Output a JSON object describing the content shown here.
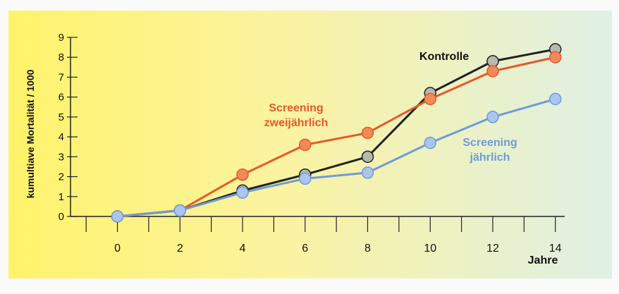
{
  "chart_data": {
    "type": "line",
    "x_label": "Jahre",
    "y_label": "kumultiave Mortalität / 1000",
    "x": [
      0,
      2,
      4,
      6,
      8,
      10,
      12,
      14
    ],
    "series": [
      {
        "name": "Kontrolle",
        "color": "#222222",
        "marker_color": "#b8b8b0",
        "values": [
          0,
          0.3,
          1.3,
          2.1,
          3.0,
          6.2,
          7.8,
          8.4
        ]
      },
      {
        "name": "Screening zweijährlich",
        "color": "#e8582a",
        "marker_color": "#f08a5a",
        "values": [
          0,
          0.3,
          2.1,
          3.6,
          4.2,
          5.9,
          7.3,
          8.0
        ]
      },
      {
        "name": "Screening jährlich",
        "color": "#6f9bd8",
        "marker_color": "#aac6ee",
        "values": [
          0,
          0.3,
          1.2,
          1.9,
          2.2,
          3.7,
          5.0,
          5.9
        ]
      }
    ],
    "xlim": [
      -1.5,
      14.3
    ],
    "ylim": [
      0,
      9
    ],
    "xticks": [
      0,
      2,
      4,
      6,
      8,
      10,
      12,
      14
    ],
    "xminor_ticks": [
      -1,
      1,
      3,
      5,
      7,
      9,
      11,
      13
    ],
    "yticks": [
      0,
      1,
      2,
      3,
      4,
      5,
      6,
      7,
      8,
      9
    ],
    "grid": false
  }
}
